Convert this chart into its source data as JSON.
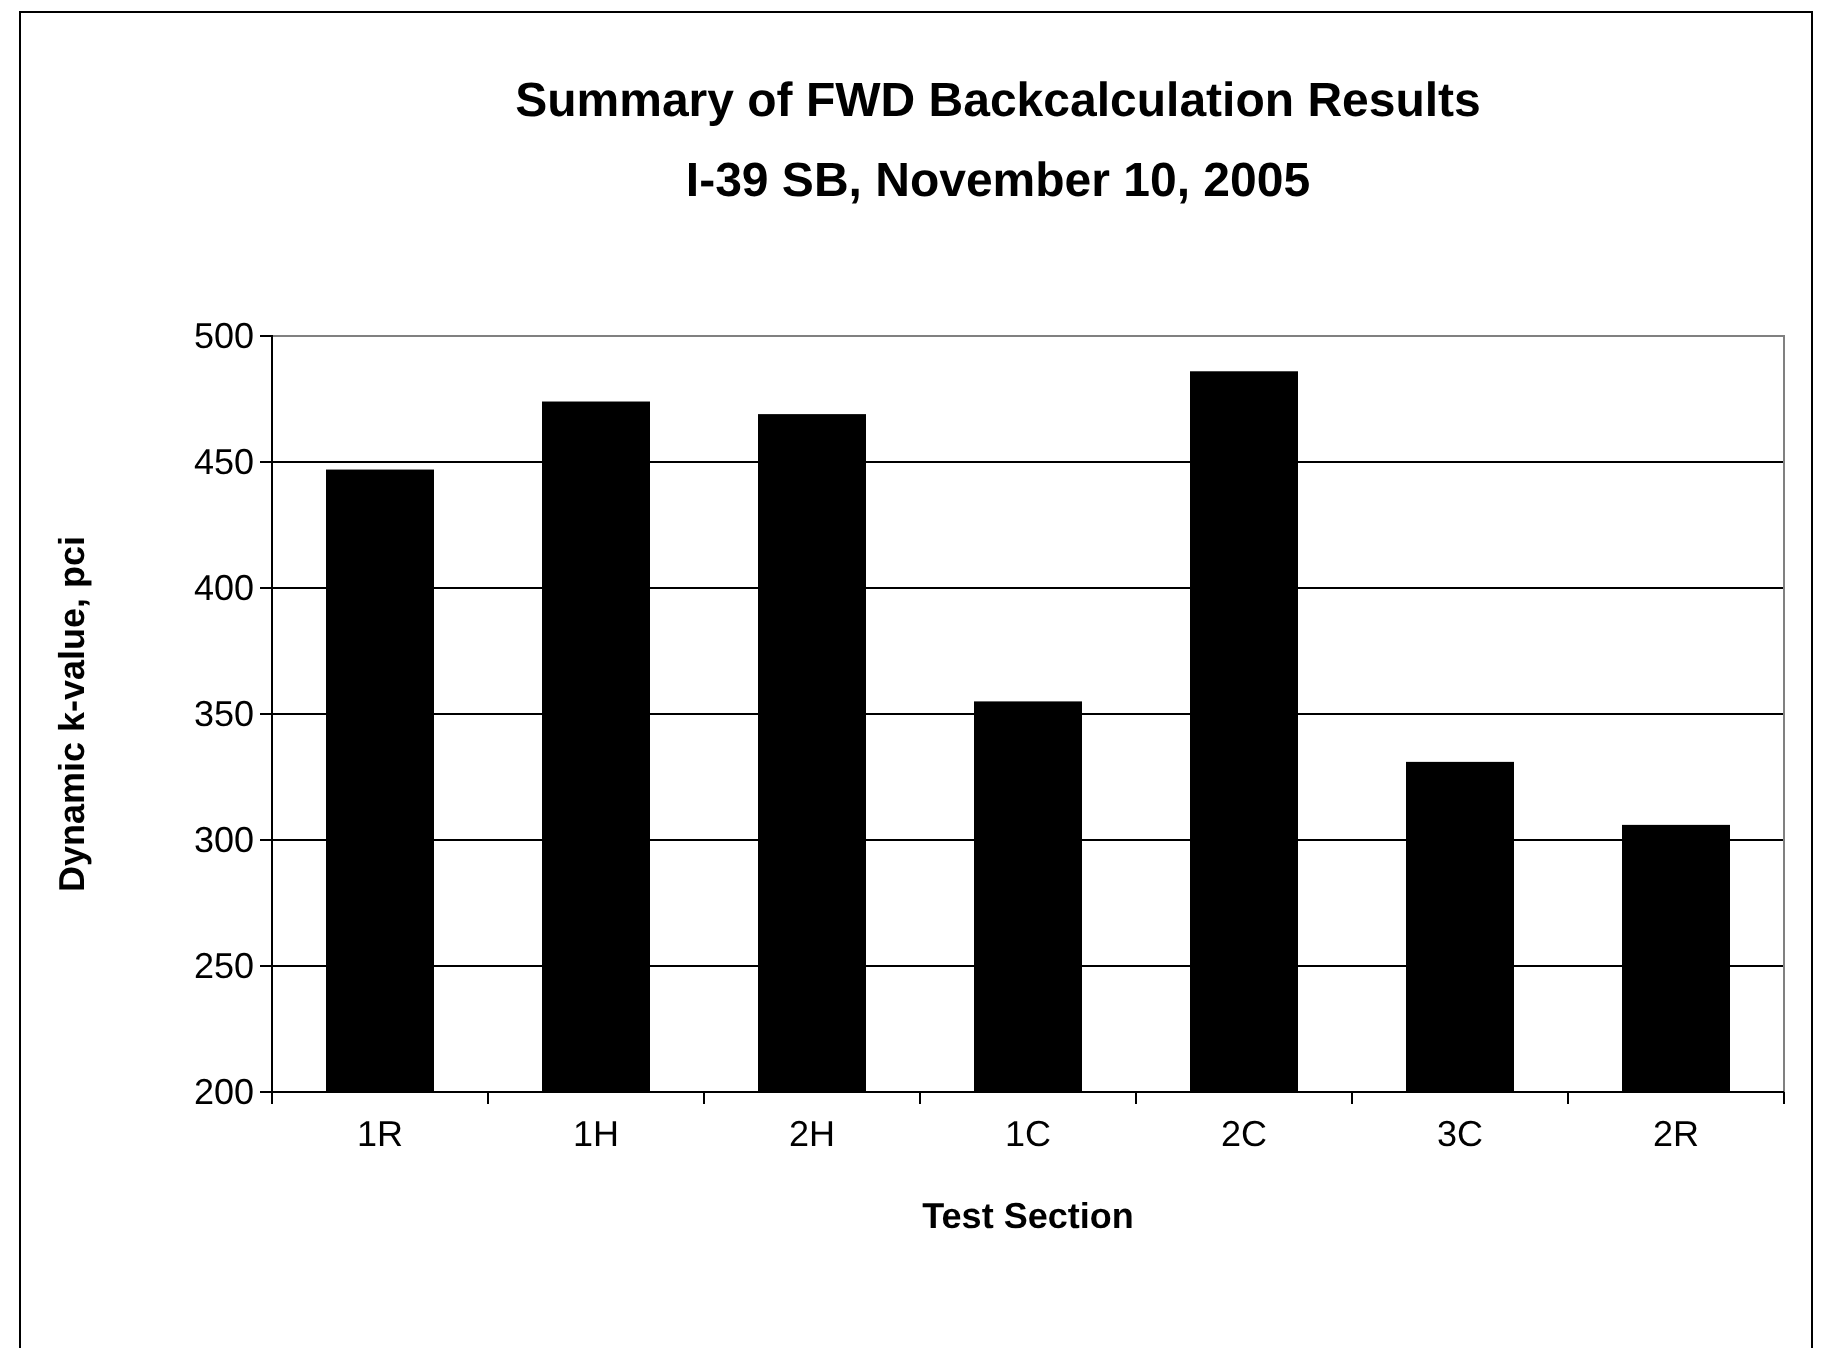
{
  "chart_data": {
    "type": "bar",
    "title": "Summary of FWD Backcalculation Results",
    "subtitle": "I-39 SB, November 10, 2005",
    "xlabel": "Test Section",
    "ylabel": "Dynamic k-value, pci",
    "categories": [
      "1R",
      "1H",
      "2H",
      "1C",
      "2C",
      "3C",
      "2R"
    ],
    "values": [
      447,
      474,
      469,
      355,
      486,
      331,
      306
    ],
    "color": "#000000",
    "ylim": [
      200,
      500
    ],
    "yticks": [
      200,
      250,
      300,
      350,
      400,
      450,
      500
    ],
    "grid": "y"
  }
}
